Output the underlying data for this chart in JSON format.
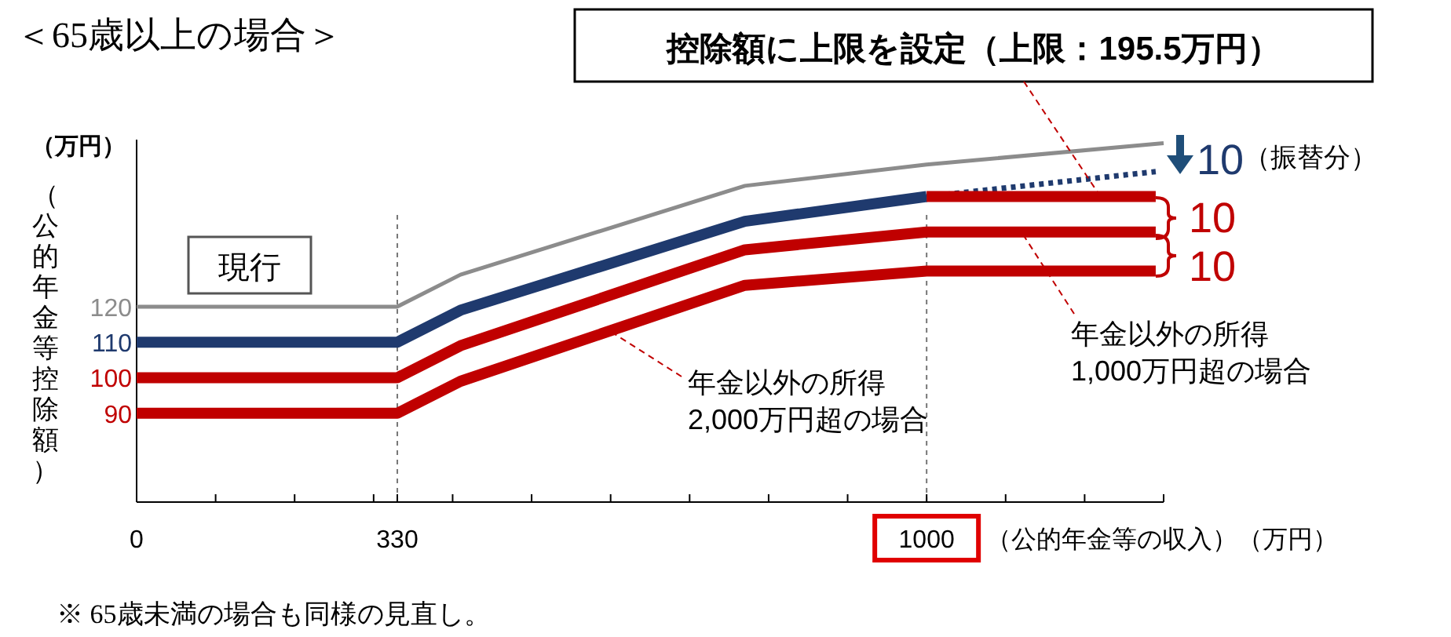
{
  "chart_data": {
    "type": "line",
    "title": "＜65歳以上の場合＞",
    "xlabel": "（公的年金等の収入）（万円）",
    "ylabel": "（公的年金等控除額）",
    "xlim": [
      0,
      1300
    ],
    "ylim": [
      65,
      167
    ],
    "xticks": [
      {
        "value": 0,
        "label": "0"
      },
      {
        "value": 100,
        "label": null
      },
      {
        "value": 200,
        "label": null
      },
      {
        "value": 300,
        "label": null
      },
      {
        "value": 330,
        "label": "330"
      },
      {
        "value": 400,
        "label": null
      },
      {
        "value": 500,
        "label": null
      },
      {
        "value": 600,
        "label": null
      },
      {
        "value": 700,
        "label": null
      },
      {
        "value": 800,
        "label": null
      },
      {
        "value": 900,
        "label": null
      },
      {
        "value": 1000,
        "label": "1000"
      },
      {
        "value": 1100,
        "label": null
      },
      {
        "value": 1200,
        "label": null
      },
      {
        "value": 1300,
        "label": null
      }
    ],
    "yticks": [
      90,
      100,
      110,
      120
    ],
    "series": [
      {
        "color": "#8c8c8c",
        "x": [
          0,
          330,
          410,
          770,
          1000,
          1300
        ],
        "values": [
          120,
          120,
          129,
          154,
          160,
          166
        ]
      },
      {
        "color": "#1f3a6e",
        "x": [
          0,
          330,
          410,
          770,
          1000
        ],
        "values": [
          110,
          110,
          119,
          144,
          151
        ]
      },
      {
        "color": "#1f3a6e",
        "x": [
          1000,
          1290
        ],
        "values": [
          151,
          158
        ],
        "line_style": "dotted"
      },
      {
        "color": "#c00000",
        "x": [
          1000,
          1290
        ],
        "values": [
          151,
          151
        ]
      },
      {
        "color": "#c00000",
        "x": [
          0,
          330,
          410,
          770,
          1000,
          1290
        ],
        "values": [
          100,
          100,
          109,
          136,
          141,
          141
        ]
      },
      {
        "color": "#c00000",
        "x": [
          0,
          330,
          410,
          770,
          1000,
          1290
        ],
        "values": [
          90,
          90,
          99,
          126,
          130,
          130
        ]
      }
    ],
    "ref_lines": [
      {
        "axis": "x",
        "value": 330,
        "line_style": "dotted",
        "color": "#777777"
      },
      {
        "axis": "x",
        "value": 1000,
        "line_style": "dotted",
        "color": "#777777"
      }
    ],
    "annotations": [
      {
        "text": "控除額に上限を設定（上限：195.5万円）",
        "x": 1220,
        "y": 151
      },
      "10",
      "（振替分）",
      "10",
      "10",
      "現行",
      {
        "text": "年金以外の所得\n1,000万円超の場合",
        "x": 1120,
        "y": 141
      },
      {
        "text": "年金以外の所得\n2,000万円超の場合",
        "x": 600,
        "y": 113
      },
      "（万円）",
      "※ 65歳未満の場合も同様の見直し。"
    ],
    "grid": false
  }
}
